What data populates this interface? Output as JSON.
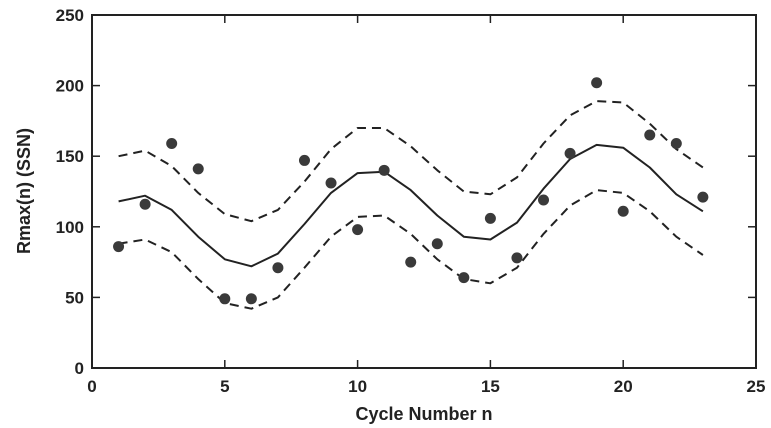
{
  "chart_data": {
    "type": "scatter",
    "xlabel": "Cycle Number n",
    "ylabel": "Rmax(n) (SSN)",
    "xlim": [
      0,
      25
    ],
    "ylim": [
      0,
      250
    ],
    "xticks": [
      0,
      5,
      10,
      15,
      20,
      25
    ],
    "yticks": [
      0,
      50,
      100,
      150,
      200,
      250
    ],
    "grid": false,
    "series": [
      {
        "style": "dots",
        "x": [
          1,
          2,
          3,
          4,
          5,
          6,
          7,
          8,
          9,
          10,
          11,
          12,
          13,
          14,
          15,
          16,
          17,
          18,
          19,
          20,
          21,
          22,
          23
        ],
        "y": [
          86,
          116,
          159,
          141,
          49,
          49,
          71,
          147,
          131,
          98,
          140,
          75,
          88,
          64,
          106,
          78,
          119,
          152,
          202,
          111,
          165,
          159,
          121
        ]
      },
      {
        "style": "solid",
        "x": [
          1,
          2,
          3,
          4,
          5,
          6,
          7,
          8,
          9,
          10,
          11,
          12,
          13,
          14,
          15,
          16,
          17,
          18,
          19,
          20,
          21,
          22,
          23
        ],
        "y": [
          118,
          122,
          112,
          93,
          77,
          72,
          81,
          102,
          124,
          138,
          139,
          126,
          108,
          93,
          91,
          103,
          127,
          148,
          158,
          156,
          142,
          123,
          111
        ]
      },
      {
        "style": "dashed",
        "x": [
          1,
          2,
          3,
          4,
          5,
          6,
          7,
          8,
          9,
          10,
          11,
          12,
          13,
          14,
          15,
          16,
          17,
          18,
          19,
          20,
          21,
          22,
          23
        ],
        "y": [
          150,
          154,
          143,
          124,
          109,
          104,
          112,
          132,
          155,
          170,
          170,
          157,
          140,
          125,
          123,
          135,
          159,
          179,
          189,
          188,
          173,
          155,
          142
        ]
      },
      {
        "style": "dashed",
        "x": [
          1,
          2,
          3,
          4,
          5,
          6,
          7,
          8,
          9,
          10,
          11,
          12,
          13,
          14,
          15,
          16,
          17,
          18,
          19,
          20,
          21,
          22,
          23
        ],
        "y": [
          88,
          91,
          82,
          63,
          46,
          42,
          50,
          71,
          93,
          107,
          108,
          95,
          77,
          63,
          60,
          71,
          95,
          115,
          126,
          124,
          111,
          93,
          80
        ]
      }
    ]
  }
}
